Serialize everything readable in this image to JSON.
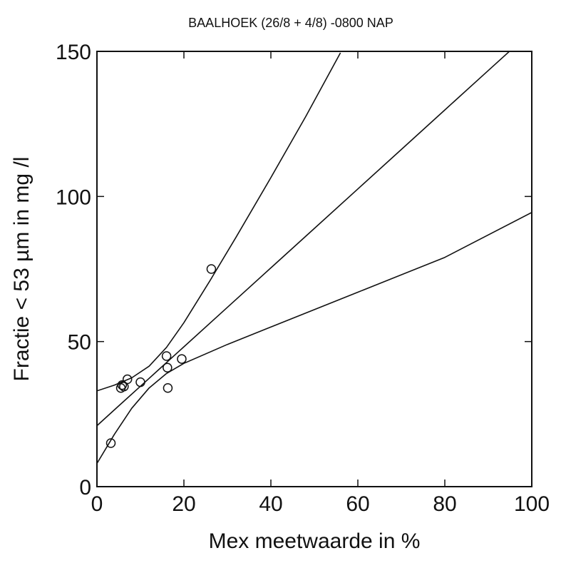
{
  "chart_data": {
    "type": "scatter",
    "title": "BAALHOEK (26/8 + 4/8) -0800 NAP",
    "xlabel": "Mex  meetwaarde in %",
    "ylabel": "Fractie < 53 µm in mg /l",
    "xlim": [
      0,
      100
    ],
    "ylim": [
      0,
      150
    ],
    "x_ticks": [
      0,
      20,
      40,
      60,
      80,
      100
    ],
    "y_ticks": [
      0,
      50,
      100,
      150
    ],
    "grid": false,
    "series": [
      {
        "marker": "open-circle",
        "points": [
          {
            "x": 3.2,
            "y": 15
          },
          {
            "x": 5.5,
            "y": 34
          },
          {
            "x": 5.8,
            "y": 35
          },
          {
            "x": 6.2,
            "y": 34.5
          },
          {
            "x": 7.0,
            "y": 37
          },
          {
            "x": 10.0,
            "y": 36
          },
          {
            "x": 16.0,
            "y": 45
          },
          {
            "x": 16.2,
            "y": 41
          },
          {
            "x": 16.3,
            "y": 34
          },
          {
            "x": 19.5,
            "y": 44
          },
          {
            "x": 26.3,
            "y": 75
          }
        ]
      }
    ],
    "lines": [
      {
        "points": [
          {
            "x": 0,
            "y": 21
          },
          {
            "x": 5,
            "y": 27.8
          },
          {
            "x": 10,
            "y": 34.6
          },
          {
            "x": 15,
            "y": 41.4
          },
          {
            "x": 20,
            "y": 48.2
          },
          {
            "x": 30,
            "y": 61.8
          },
          {
            "x": 40,
            "y": 75.4
          },
          {
            "x": 50,
            "y": 89
          },
          {
            "x": 60,
            "y": 102.6
          },
          {
            "x": 70,
            "y": 116.2
          },
          {
            "x": 80,
            "y": 129.8
          },
          {
            "x": 90,
            "y": 143.4
          },
          {
            "x": 95,
            "y": 150.2
          }
        ]
      },
      {
        "points": [
          {
            "x": 0,
            "y": 33
          },
          {
            "x": 4,
            "y": 35
          },
          {
            "x": 8,
            "y": 37.5
          },
          {
            "x": 12,
            "y": 41.5
          },
          {
            "x": 16,
            "y": 48
          },
          {
            "x": 20,
            "y": 56.5
          },
          {
            "x": 26,
            "y": 71
          },
          {
            "x": 32,
            "y": 86
          },
          {
            "x": 40,
            "y": 106.5
          },
          {
            "x": 48,
            "y": 127.5
          },
          {
            "x": 56,
            "y": 149.5
          }
        ]
      },
      {
        "points": [
          {
            "x": 0,
            "y": 8
          },
          {
            "x": 4,
            "y": 18
          },
          {
            "x": 8,
            "y": 27
          },
          {
            "x": 12,
            "y": 34
          },
          {
            "x": 16,
            "y": 39
          },
          {
            "x": 20,
            "y": 42.5
          },
          {
            "x": 30,
            "y": 49
          },
          {
            "x": 40,
            "y": 55
          },
          {
            "x": 60,
            "y": 67
          },
          {
            "x": 80,
            "y": 79
          },
          {
            "x": 100,
            "y": 94.5
          }
        ]
      }
    ]
  }
}
